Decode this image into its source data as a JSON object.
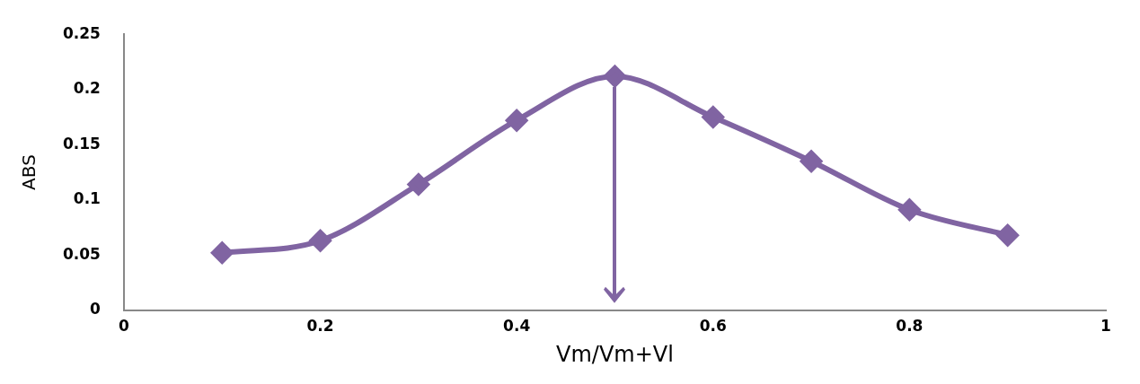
{
  "chart_data": {
    "type": "line",
    "xlabel": "Vm/Vm+Vl",
    "ylabel": "ABS",
    "x": [
      0.1,
      0.2,
      0.3,
      0.4,
      0.5,
      0.6,
      0.7,
      0.8,
      0.9
    ],
    "series": [
      {
        "color": "#8064a2",
        "values": [
          0.052,
          0.063,
          0.114,
          0.172,
          0.212,
          0.175,
          0.135,
          0.091,
          0.068
        ]
      }
    ],
    "xlim": [
      0,
      1
    ],
    "xticks": [
      0,
      0.2,
      0.4,
      0.6,
      0.8,
      1
    ],
    "ylim": [
      0,
      0.25
    ],
    "yticks": [
      0,
      0.05,
      0.1,
      0.15,
      0.2,
      0.25
    ],
    "grid": false,
    "legend": false,
    "marker": "diamond",
    "line_style": "solid"
  }
}
